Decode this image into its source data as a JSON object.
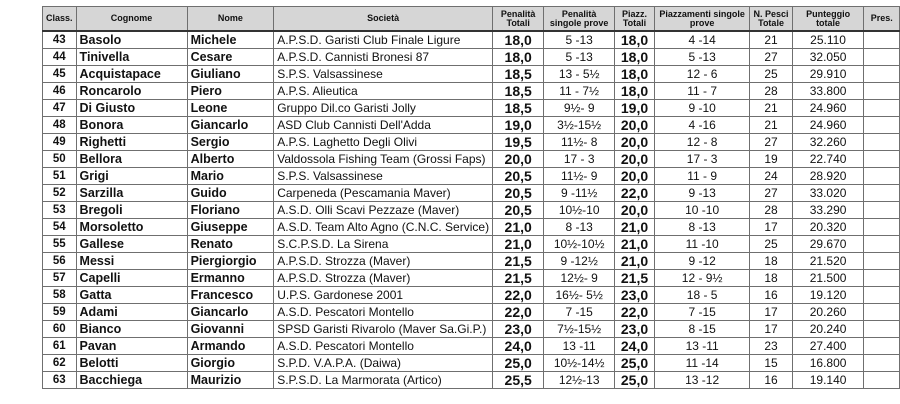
{
  "headers": {
    "clas": "Class.",
    "cognome": "Cognome",
    "nome": "Nome",
    "societa": "Società",
    "pen_tot": "Penalità Totali",
    "pen_singole": "Penalità singole prove",
    "piazz_tot": "Piazz. Totali",
    "piazz_singole": "Piazzamenti singole prove",
    "pesci": "N. Pesci Totale",
    "punteggio": "Punteggio totale",
    "pres": "Pres."
  },
  "rows": [
    {
      "clas": "43",
      "cognome": "Basolo",
      "nome": "Michele",
      "societa": "A.P.S.D. Garisti Club Finale Ligure",
      "pen_tot": "18,0",
      "pen_singole": "5 -13",
      "piazz_tot": "18,0",
      "piazz_singole": "4 -14",
      "pesci": "21",
      "punteggio": "25.110",
      "pres": ""
    },
    {
      "clas": "44",
      "cognome": "Tinivella",
      "nome": "Cesare",
      "societa": "A.P.S.D. Cannisti Bronesi 87",
      "pen_tot": "18,0",
      "pen_singole": "5 -13",
      "piazz_tot": "18,0",
      "piazz_singole": "5 -13",
      "pesci": "27",
      "punteggio": "32.050",
      "pres": ""
    },
    {
      "clas": "45",
      "cognome": "Acquistapace",
      "nome": "Giuliano",
      "societa": "S.P.S. Valsassinese",
      "pen_tot": "18,5",
      "pen_singole": "13 - 5½",
      "piazz_tot": "18,0",
      "piazz_singole": "12 - 6",
      "pesci": "25",
      "punteggio": "29.910",
      "pres": ""
    },
    {
      "clas": "46",
      "cognome": "Roncarolo",
      "nome": "Piero",
      "societa": "A.P.S. Alieutica",
      "pen_tot": "18,5",
      "pen_singole": "11 - 7½",
      "piazz_tot": "18,0",
      "piazz_singole": "11 - 7",
      "pesci": "28",
      "punteggio": "33.800",
      "pres": ""
    },
    {
      "clas": "47",
      "cognome": "Di Giusto",
      "nome": "Leone",
      "societa": "Gruppo Dil.co Garisti Jolly",
      "pen_tot": "18,5",
      "pen_singole": "9½- 9",
      "piazz_tot": "19,0",
      "piazz_singole": "9 -10",
      "pesci": "21",
      "punteggio": "24.960",
      "pres": ""
    },
    {
      "clas": "48",
      "cognome": "Bonora",
      "nome": "Giancarlo",
      "societa": "ASD Club Cannisti Dell'Adda",
      "pen_tot": "19,0",
      "pen_singole": "3½-15½",
      "piazz_tot": "20,0",
      "piazz_singole": "4 -16",
      "pesci": "21",
      "punteggio": "24.960",
      "pres": ""
    },
    {
      "clas": "49",
      "cognome": "Righetti",
      "nome": "Sergio",
      "societa": "A.P.S. Laghetto Degli Olivi",
      "pen_tot": "19,5",
      "pen_singole": "11½- 8",
      "piazz_tot": "20,0",
      "piazz_singole": "12 - 8",
      "pesci": "27",
      "punteggio": "32.260",
      "pres": ""
    },
    {
      "clas": "50",
      "cognome": "Bellora",
      "nome": "Alberto",
      "societa": "Valdossola Fishing Team (Grossi Faps)",
      "pen_tot": "20,0",
      "pen_singole": "17 - 3",
      "piazz_tot": "20,0",
      "piazz_singole": "17 - 3",
      "pesci": "19",
      "punteggio": "22.740",
      "pres": ""
    },
    {
      "clas": "51",
      "cognome": "Grigi",
      "nome": "Mario",
      "societa": "S.P.S. Valsassinese",
      "pen_tot": "20,5",
      "pen_singole": "11½- 9",
      "piazz_tot": "20,0",
      "piazz_singole": "11 - 9",
      "pesci": "24",
      "punteggio": "28.920",
      "pres": ""
    },
    {
      "clas": "52",
      "cognome": "Sarzilla",
      "nome": "Guido",
      "societa": "Carpeneda (Pescamania Maver)",
      "pen_tot": "20,5",
      "pen_singole": "9 -11½",
      "piazz_tot": "22,0",
      "piazz_singole": "9 -13",
      "pesci": "27",
      "punteggio": "33.020",
      "pres": ""
    },
    {
      "clas": "53",
      "cognome": "Bregoli",
      "nome": "Floriano",
      "societa": "A.S.D. Olli Scavi Pezzaze (Maver)",
      "pen_tot": "20,5",
      "pen_singole": "10½-10",
      "piazz_tot": "20,0",
      "piazz_singole": "10 -10",
      "pesci": "28",
      "punteggio": "33.290",
      "pres": ""
    },
    {
      "clas": "54",
      "cognome": "Morsoletto",
      "nome": "Giuseppe",
      "societa": "A.S.D. Team Alto Agno (C.N.C. Service)",
      "pen_tot": "21,0",
      "pen_singole": "8 -13",
      "piazz_tot": "21,0",
      "piazz_singole": "8 -13",
      "pesci": "17",
      "punteggio": "20.320",
      "pres": ""
    },
    {
      "clas": "55",
      "cognome": "Gallese",
      "nome": "Renato",
      "societa": "S.C.P.S.D. La Sirena",
      "pen_tot": "21,0",
      "pen_singole": "10½-10½",
      "piazz_tot": "21,0",
      "piazz_singole": "11 -10",
      "pesci": "25",
      "punteggio": "29.670",
      "pres": ""
    },
    {
      "clas": "56",
      "cognome": "Messi",
      "nome": "Piergiorgio",
      "societa": "A.P.S.D. Strozza (Maver)",
      "pen_tot": "21,5",
      "pen_singole": "9 -12½",
      "piazz_tot": "21,0",
      "piazz_singole": "9 -12",
      "pesci": "18",
      "punteggio": "21.520",
      "pres": ""
    },
    {
      "clas": "57",
      "cognome": "Capelli",
      "nome": "Ermanno",
      "societa": "A.P.S.D. Strozza (Maver)",
      "pen_tot": "21,5",
      "pen_singole": "12½- 9",
      "piazz_tot": "21,5",
      "piazz_singole": "12 - 9½",
      "pesci": "18",
      "punteggio": "21.500",
      "pres": ""
    },
    {
      "clas": "58",
      "cognome": "Gatta",
      "nome": "Francesco",
      "societa": "U.P.S. Gardonese 2001",
      "pen_tot": "22,0",
      "pen_singole": "16½- 5½",
      "piazz_tot": "23,0",
      "piazz_singole": "18 - 5",
      "pesci": "16",
      "punteggio": "19.120",
      "pres": ""
    },
    {
      "clas": "59",
      "cognome": "Adami",
      "nome": "Giancarlo",
      "societa": "A.S.D. Pescatori Montello",
      "pen_tot": "22,0",
      "pen_singole": "7 -15",
      "piazz_tot": "22,0",
      "piazz_singole": "7 -15",
      "pesci": "17",
      "punteggio": "20.260",
      "pres": ""
    },
    {
      "clas": "60",
      "cognome": "Bianco",
      "nome": "Giovanni",
      "societa": "SPSD Garisti Rivarolo (Maver Sa.Gi.P.)",
      "pen_tot": "23,0",
      "pen_singole": "7½-15½",
      "piazz_tot": "23,0",
      "piazz_singole": "8 -15",
      "pesci": "17",
      "punteggio": "20.240",
      "pres": ""
    },
    {
      "clas": "61",
      "cognome": "Pavan",
      "nome": "Armando",
      "societa": "A.S.D. Pescatori Montello",
      "pen_tot": "24,0",
      "pen_singole": "13 -11",
      "piazz_tot": "24,0",
      "piazz_singole": "13 -11",
      "pesci": "23",
      "punteggio": "27.400",
      "pres": ""
    },
    {
      "clas": "62",
      "cognome": "Belotti",
      "nome": "Giorgio",
      "societa": "S.P.D. V.A.P.A. (Daiwa)",
      "pen_tot": "25,0",
      "pen_singole": "10½-14½",
      "piazz_tot": "25,0",
      "piazz_singole": "11 -14",
      "pesci": "15",
      "punteggio": "16.800",
      "pres": ""
    },
    {
      "clas": "63",
      "cognome": "Bacchiega",
      "nome": "Maurizio",
      "societa": "S.P.S.D. La Marmorata (Artico)",
      "pen_tot": "25,5",
      "pen_singole": "12½-13",
      "piazz_tot": "25,0",
      "piazz_singole": "13 -12",
      "pesci": "16",
      "punteggio": "19.140",
      "pres": ""
    }
  ]
}
